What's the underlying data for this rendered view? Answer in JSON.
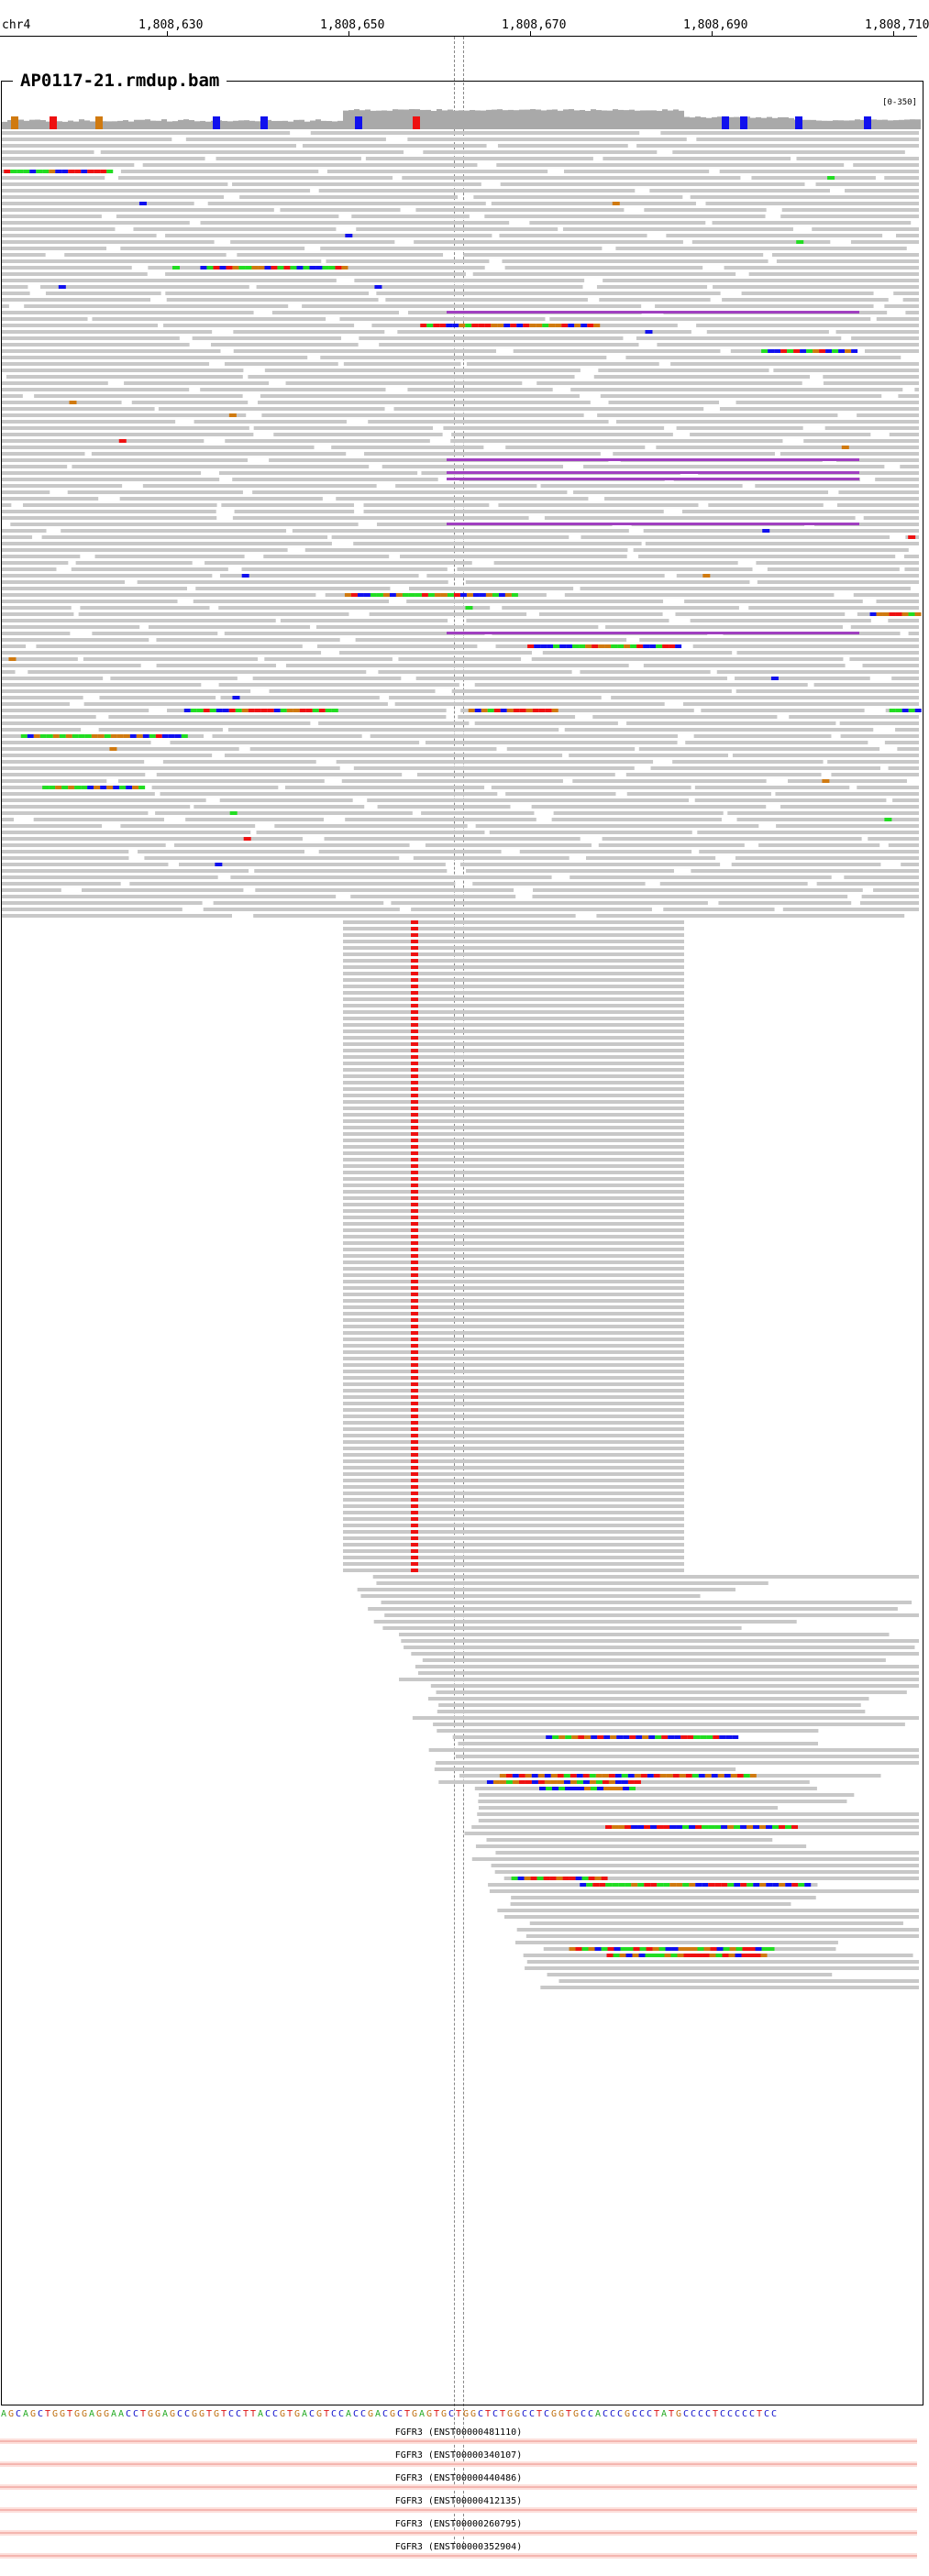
{
  "ruler": {
    "chromosome": "chr4",
    "ticks": [
      {
        "label": "1,808,630",
        "pos": 1808630
      },
      {
        "label": "1,808,650",
        "pos": 1808650
      },
      {
        "label": "1,808,670",
        "pos": 1808670
      },
      {
        "label": "1,808,690",
        "pos": 1808690
      },
      {
        "label": "1,808,710",
        "pos": 1808710
      }
    ]
  },
  "track": {
    "title": "AP0117-21.rmdup.bam",
    "range_label": "[0-350]"
  },
  "colors": {
    "read_gray": "#c8c8c8",
    "coverage_gray": "#a9a9a9",
    "mismatch_A": "#22dd22",
    "mismatch_C": "#1010ee",
    "mismatch_G": "#d07a10",
    "mismatch_T": "#ee1111",
    "insertion_purple": "#a040c0",
    "gene_feature": "#f4b6b0"
  },
  "reference_sequence": "AGCAGCTGGTGGAGGAACCTGGAGCCGGTGTCCTTACCGTGACGTCCACCGACGCTGAGTGCTGGCTCTGGCCTCGGTGCCACCCGCCCTATGCCCCTCCCCCTCC",
  "genes": [
    {
      "label": "FGFR3 (ENST00000481110)"
    },
    {
      "label": "FGFR3 (ENST00000340107)"
    },
    {
      "label": "FGFR3 (ENST00000440486)"
    },
    {
      "label": "FGFR3 (ENST00000412135)"
    },
    {
      "label": "FGFR3 (ENST00000260795)"
    },
    {
      "label": "FGFR3 (ENST00000352904)"
    }
  ]
}
